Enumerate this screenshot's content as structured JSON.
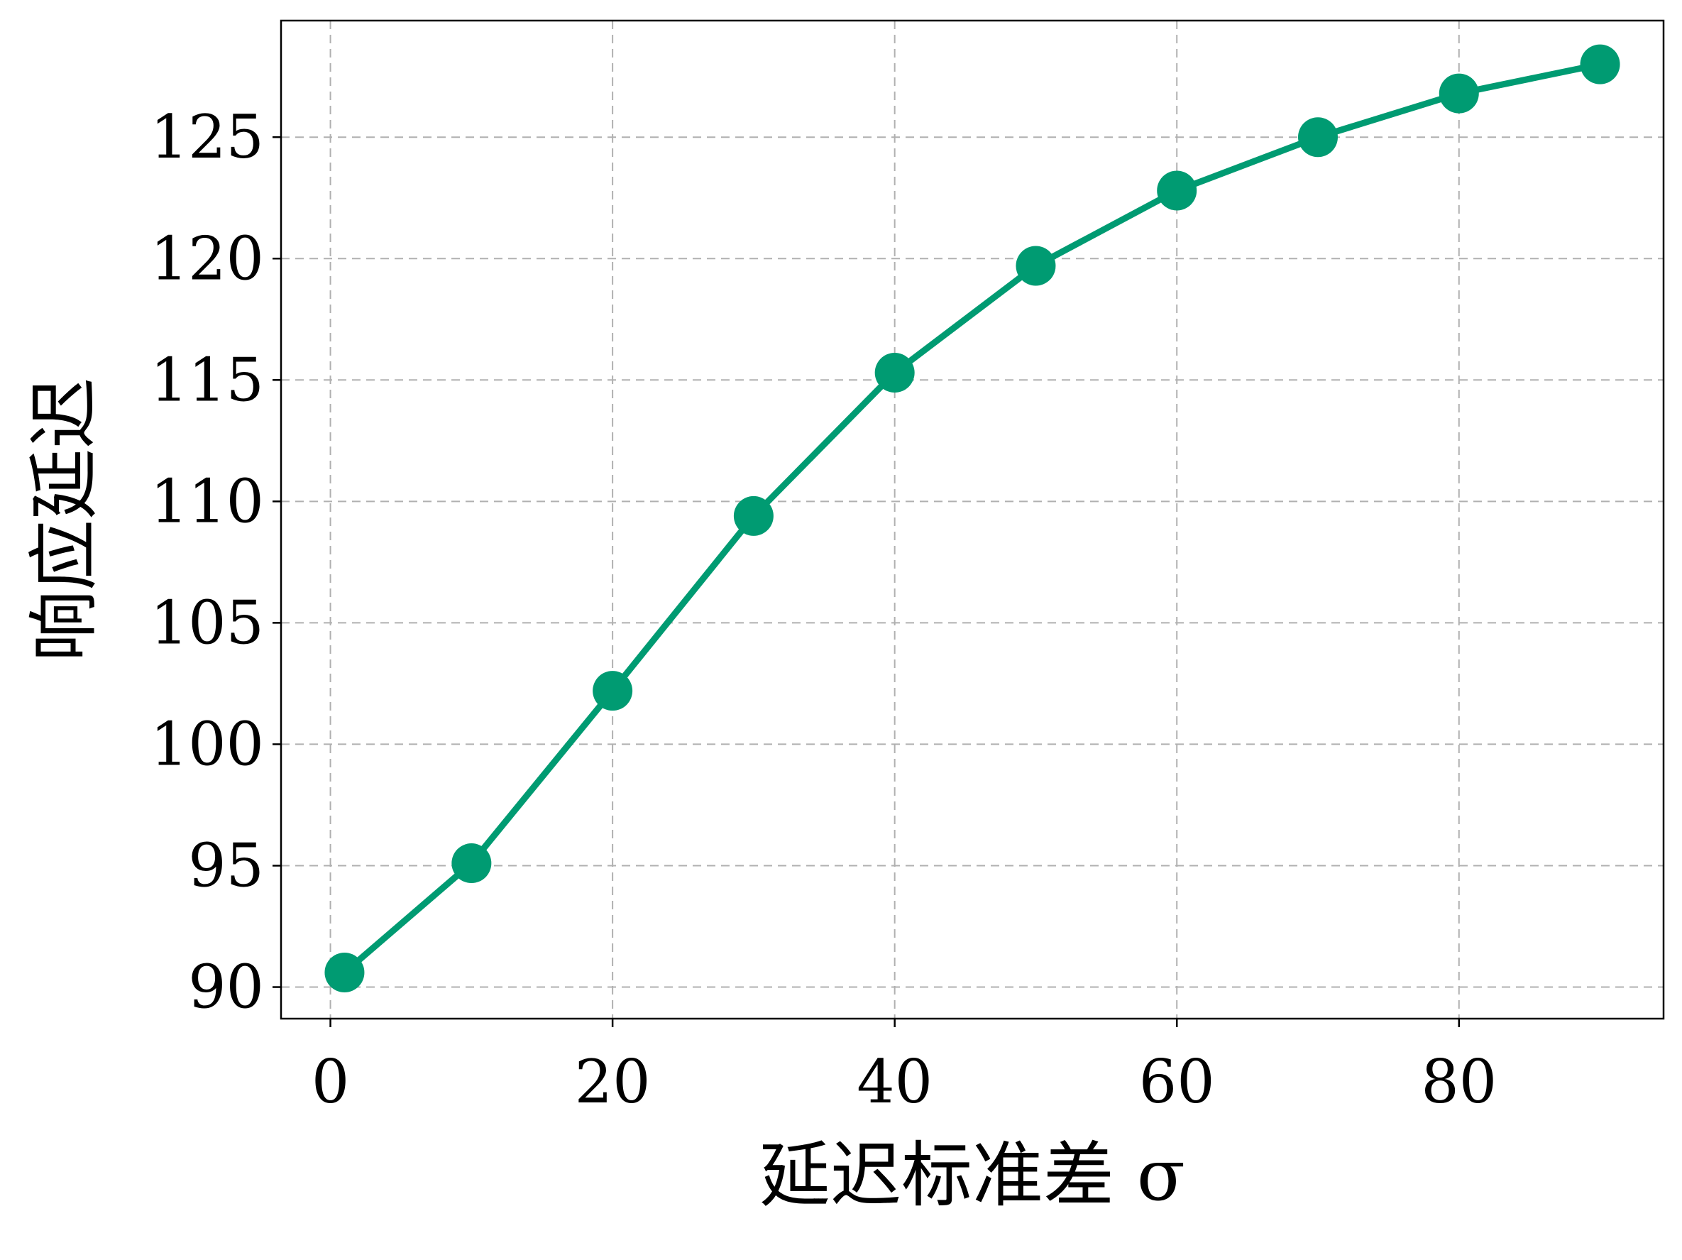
{
  "chart_data": {
    "type": "line",
    "title": "",
    "xlabel": "延迟标准差 σ",
    "ylabel": "响应延迟",
    "xlim": [
      -3.5,
      94.5
    ],
    "ylim": [
      88.7,
      129.8
    ],
    "x_ticks": [
      0,
      20,
      40,
      60,
      80
    ],
    "y_ticks": [
      90,
      95,
      100,
      105,
      110,
      115,
      120,
      125
    ],
    "grid": true,
    "grid_style": "dashed",
    "legend": "none",
    "series": [
      {
        "color": "#009B72",
        "marker": "circle",
        "x": [
          1,
          10,
          20,
          30,
          40,
          50,
          60,
          70,
          80,
          90
        ],
        "y": [
          90.6,
          95.1,
          102.2,
          109.4,
          115.3,
          119.7,
          122.8,
          125.0,
          126.8,
          128.0
        ]
      }
    ]
  }
}
